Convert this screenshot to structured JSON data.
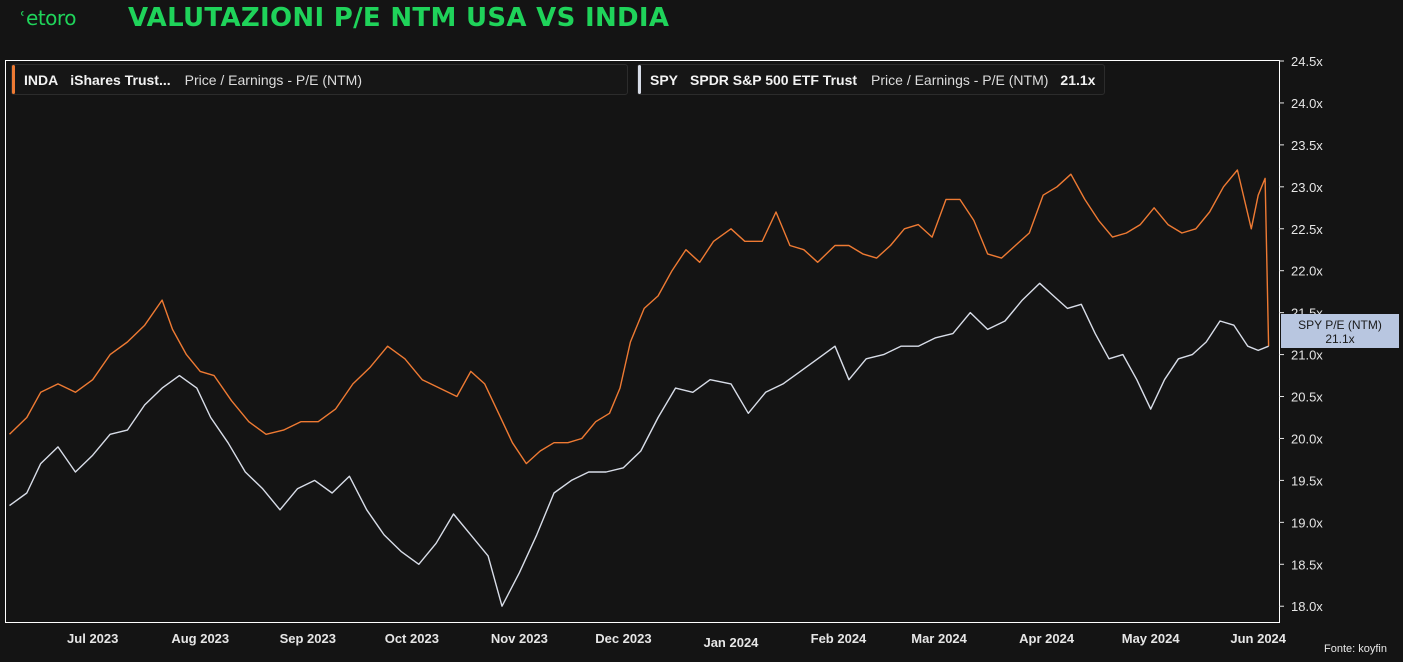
{
  "header": {
    "logo_text": "etoro",
    "title": "VALUTAZIONI P/E NTM USA VS INDIA"
  },
  "legend": {
    "series1": {
      "ticker": "INDA",
      "name": "iShares Trust...",
      "metric": "Price / Earnings - P/E (NTM)",
      "color": "#ee7a33"
    },
    "series2": {
      "ticker": "SPY",
      "name": "SPDR S&P 500 ETF Trust",
      "metric": "Price / Earnings - P/E (NTM)",
      "value": "21.1x",
      "color": "#d8dde8"
    }
  },
  "tag": {
    "line1": "SPY P/E (NTM)",
    "line2": "21.1x",
    "bg": "#b8c6e0"
  },
  "source": "Fonte: koyfin",
  "chart_data": {
    "type": "line",
    "title": "VALUTAZIONI P/E NTM USA VS INDIA",
    "x_ticks": [
      {
        "date": "2023-07-01",
        "label": "Jul 2023"
      },
      {
        "date": "2023-08-01",
        "label": "Aug 2023"
      },
      {
        "date": "2023-09-01",
        "label": "Sep 2023"
      },
      {
        "date": "2023-10-01",
        "label": "Oct 2023"
      },
      {
        "date": "2023-11-01",
        "label": "Nov 2023"
      },
      {
        "date": "2023-12-01",
        "label": "Dec 2023"
      },
      {
        "date": "2024-01-01",
        "label": "Jan 2024"
      },
      {
        "date": "2024-02-01",
        "label": "Feb 2024"
      },
      {
        "date": "2024-03-01",
        "label": "Mar 2024"
      },
      {
        "date": "2024-04-01",
        "label": "Apr 2024"
      },
      {
        "date": "2024-05-01",
        "label": "May 2024"
      },
      {
        "date": "2024-06-01",
        "label": "Jun 2024"
      }
    ],
    "y_ticks": [
      "18.0x",
      "18.5x",
      "19.0x",
      "19.5x",
      "20.0x",
      "20.5x",
      "21.0x",
      "21.5x",
      "22.0x",
      "22.5x",
      "23.0x",
      "23.5x",
      "24.0x",
      "24.5x"
    ],
    "ylim": [
      17.8,
      24.5
    ],
    "xlim": [
      "2023-06-06",
      "2024-06-07"
    ],
    "grid": false,
    "legend_position": "top-left",
    "series": [
      {
        "name": "INDA",
        "color": "#ee7a33",
        "points": [
          [
            "2023-06-07",
            20.05
          ],
          [
            "2023-06-12",
            20.25
          ],
          [
            "2023-06-16",
            20.55
          ],
          [
            "2023-06-21",
            20.65
          ],
          [
            "2023-06-26",
            20.55
          ],
          [
            "2023-07-01",
            20.7
          ],
          [
            "2023-07-06",
            21.0
          ],
          [
            "2023-07-11",
            21.15
          ],
          [
            "2023-07-16",
            21.35
          ],
          [
            "2023-07-21",
            21.65
          ],
          [
            "2023-07-24",
            21.3
          ],
          [
            "2023-07-28",
            21.0
          ],
          [
            "2023-08-01",
            20.8
          ],
          [
            "2023-08-05",
            20.75
          ],
          [
            "2023-08-10",
            20.45
          ],
          [
            "2023-08-15",
            20.2
          ],
          [
            "2023-08-20",
            20.05
          ],
          [
            "2023-08-25",
            20.1
          ],
          [
            "2023-08-30",
            20.2
          ],
          [
            "2023-09-04",
            20.2
          ],
          [
            "2023-09-09",
            20.35
          ],
          [
            "2023-09-14",
            20.65
          ],
          [
            "2023-09-19",
            20.85
          ],
          [
            "2023-09-24",
            21.1
          ],
          [
            "2023-09-29",
            20.95
          ],
          [
            "2023-10-04",
            20.7
          ],
          [
            "2023-10-09",
            20.6
          ],
          [
            "2023-10-14",
            20.5
          ],
          [
            "2023-10-18",
            20.8
          ],
          [
            "2023-10-22",
            20.65
          ],
          [
            "2023-10-26",
            20.3
          ],
          [
            "2023-10-30",
            19.95
          ],
          [
            "2023-11-03",
            19.7
          ],
          [
            "2023-11-07",
            19.85
          ],
          [
            "2023-11-11",
            19.95
          ],
          [
            "2023-11-15",
            19.95
          ],
          [
            "2023-11-19",
            20.0
          ],
          [
            "2023-11-23",
            20.2
          ],
          [
            "2023-11-27",
            20.3
          ],
          [
            "2023-11-30",
            20.6
          ],
          [
            "2023-12-03",
            21.15
          ],
          [
            "2023-12-07",
            21.55
          ],
          [
            "2023-12-11",
            21.7
          ],
          [
            "2023-12-15",
            22.0
          ],
          [
            "2023-12-19",
            22.25
          ],
          [
            "2023-12-23",
            22.1
          ],
          [
            "2023-12-27",
            22.35
          ],
          [
            "2024-01-01",
            22.5
          ],
          [
            "2024-01-05",
            22.35
          ],
          [
            "2024-01-10",
            22.35
          ],
          [
            "2024-01-14",
            22.7
          ],
          [
            "2024-01-18",
            22.3
          ],
          [
            "2024-01-22",
            22.25
          ],
          [
            "2024-01-26",
            22.1
          ],
          [
            "2024-01-31",
            22.3
          ],
          [
            "2024-02-04",
            22.3
          ],
          [
            "2024-02-08",
            22.2
          ],
          [
            "2024-02-12",
            22.15
          ],
          [
            "2024-02-16",
            22.3
          ],
          [
            "2024-02-20",
            22.5
          ],
          [
            "2024-02-24",
            22.55
          ],
          [
            "2024-02-28",
            22.4
          ],
          [
            "2024-03-03",
            22.85
          ],
          [
            "2024-03-07",
            22.85
          ],
          [
            "2024-03-11",
            22.6
          ],
          [
            "2024-03-15",
            22.2
          ],
          [
            "2024-03-19",
            22.15
          ],
          [
            "2024-03-23",
            22.3
          ],
          [
            "2024-03-27",
            22.45
          ],
          [
            "2024-03-31",
            22.9
          ],
          [
            "2024-04-04",
            23.0
          ],
          [
            "2024-04-08",
            23.15
          ],
          [
            "2024-04-12",
            22.85
          ],
          [
            "2024-04-16",
            22.6
          ],
          [
            "2024-04-20",
            22.4
          ],
          [
            "2024-04-24",
            22.45
          ],
          [
            "2024-04-28",
            22.55
          ],
          [
            "2024-05-02",
            22.75
          ],
          [
            "2024-05-06",
            22.55
          ],
          [
            "2024-05-10",
            22.45
          ],
          [
            "2024-05-14",
            22.5
          ],
          [
            "2024-05-18",
            22.7
          ],
          [
            "2024-05-22",
            23.0
          ],
          [
            "2024-05-26",
            23.2
          ],
          [
            "2024-05-30",
            22.5
          ],
          [
            "2024-06-01",
            22.9
          ],
          [
            "2024-06-03",
            23.1
          ],
          [
            "2024-06-04",
            21.1
          ]
        ]
      },
      {
        "name": "SPY",
        "color": "#d8dde8",
        "points": [
          [
            "2023-06-07",
            19.2
          ],
          [
            "2023-06-12",
            19.35
          ],
          [
            "2023-06-16",
            19.7
          ],
          [
            "2023-06-21",
            19.9
          ],
          [
            "2023-06-26",
            19.6
          ],
          [
            "2023-07-01",
            19.8
          ],
          [
            "2023-07-06",
            20.05
          ],
          [
            "2023-07-11",
            20.1
          ],
          [
            "2023-07-16",
            20.4
          ],
          [
            "2023-07-21",
            20.6
          ],
          [
            "2023-07-26",
            20.75
          ],
          [
            "2023-07-31",
            20.6
          ],
          [
            "2023-08-04",
            20.25
          ],
          [
            "2023-08-09",
            19.95
          ],
          [
            "2023-08-14",
            19.6
          ],
          [
            "2023-08-19",
            19.4
          ],
          [
            "2023-08-24",
            19.15
          ],
          [
            "2023-08-29",
            19.4
          ],
          [
            "2023-09-03",
            19.5
          ],
          [
            "2023-09-08",
            19.35
          ],
          [
            "2023-09-13",
            19.55
          ],
          [
            "2023-09-18",
            19.15
          ],
          [
            "2023-09-23",
            18.85
          ],
          [
            "2023-09-28",
            18.65
          ],
          [
            "2023-10-03",
            18.5
          ],
          [
            "2023-10-08",
            18.75
          ],
          [
            "2023-10-13",
            19.1
          ],
          [
            "2023-10-18",
            18.85
          ],
          [
            "2023-10-23",
            18.6
          ],
          [
            "2023-10-27",
            18.0
          ],
          [
            "2023-11-01",
            18.4
          ],
          [
            "2023-11-06",
            18.85
          ],
          [
            "2023-11-11",
            19.35
          ],
          [
            "2023-11-16",
            19.5
          ],
          [
            "2023-11-21",
            19.6
          ],
          [
            "2023-11-26",
            19.6
          ],
          [
            "2023-12-01",
            19.65
          ],
          [
            "2023-12-06",
            19.85
          ],
          [
            "2023-12-11",
            20.25
          ],
          [
            "2023-12-16",
            20.6
          ],
          [
            "2023-12-21",
            20.55
          ],
          [
            "2023-12-26",
            20.7
          ],
          [
            "2024-01-01",
            20.65
          ],
          [
            "2024-01-06",
            20.3
          ],
          [
            "2024-01-11",
            20.55
          ],
          [
            "2024-01-16",
            20.65
          ],
          [
            "2024-01-21",
            20.8
          ],
          [
            "2024-01-26",
            20.95
          ],
          [
            "2024-01-31",
            21.1
          ],
          [
            "2024-02-04",
            20.7
          ],
          [
            "2024-02-09",
            20.95
          ],
          [
            "2024-02-14",
            21.0
          ],
          [
            "2024-02-19",
            21.1
          ],
          [
            "2024-02-24",
            21.1
          ],
          [
            "2024-02-29",
            21.2
          ],
          [
            "2024-03-05",
            21.25
          ],
          [
            "2024-03-10",
            21.5
          ],
          [
            "2024-03-15",
            21.3
          ],
          [
            "2024-03-20",
            21.4
          ],
          [
            "2024-03-25",
            21.65
          ],
          [
            "2024-03-30",
            21.85
          ],
          [
            "2024-04-03",
            21.7
          ],
          [
            "2024-04-07",
            21.55
          ],
          [
            "2024-04-11",
            21.6
          ],
          [
            "2024-04-15",
            21.25
          ],
          [
            "2024-04-19",
            20.95
          ],
          [
            "2024-04-23",
            21.0
          ],
          [
            "2024-04-27",
            20.7
          ],
          [
            "2024-05-01",
            20.35
          ],
          [
            "2024-05-05",
            20.7
          ],
          [
            "2024-05-09",
            20.95
          ],
          [
            "2024-05-13",
            21.0
          ],
          [
            "2024-05-17",
            21.15
          ],
          [
            "2024-05-21",
            21.4
          ],
          [
            "2024-05-25",
            21.35
          ],
          [
            "2024-05-29",
            21.1
          ],
          [
            "2024-06-01",
            21.05
          ],
          [
            "2024-06-04",
            21.1
          ]
        ]
      }
    ]
  }
}
